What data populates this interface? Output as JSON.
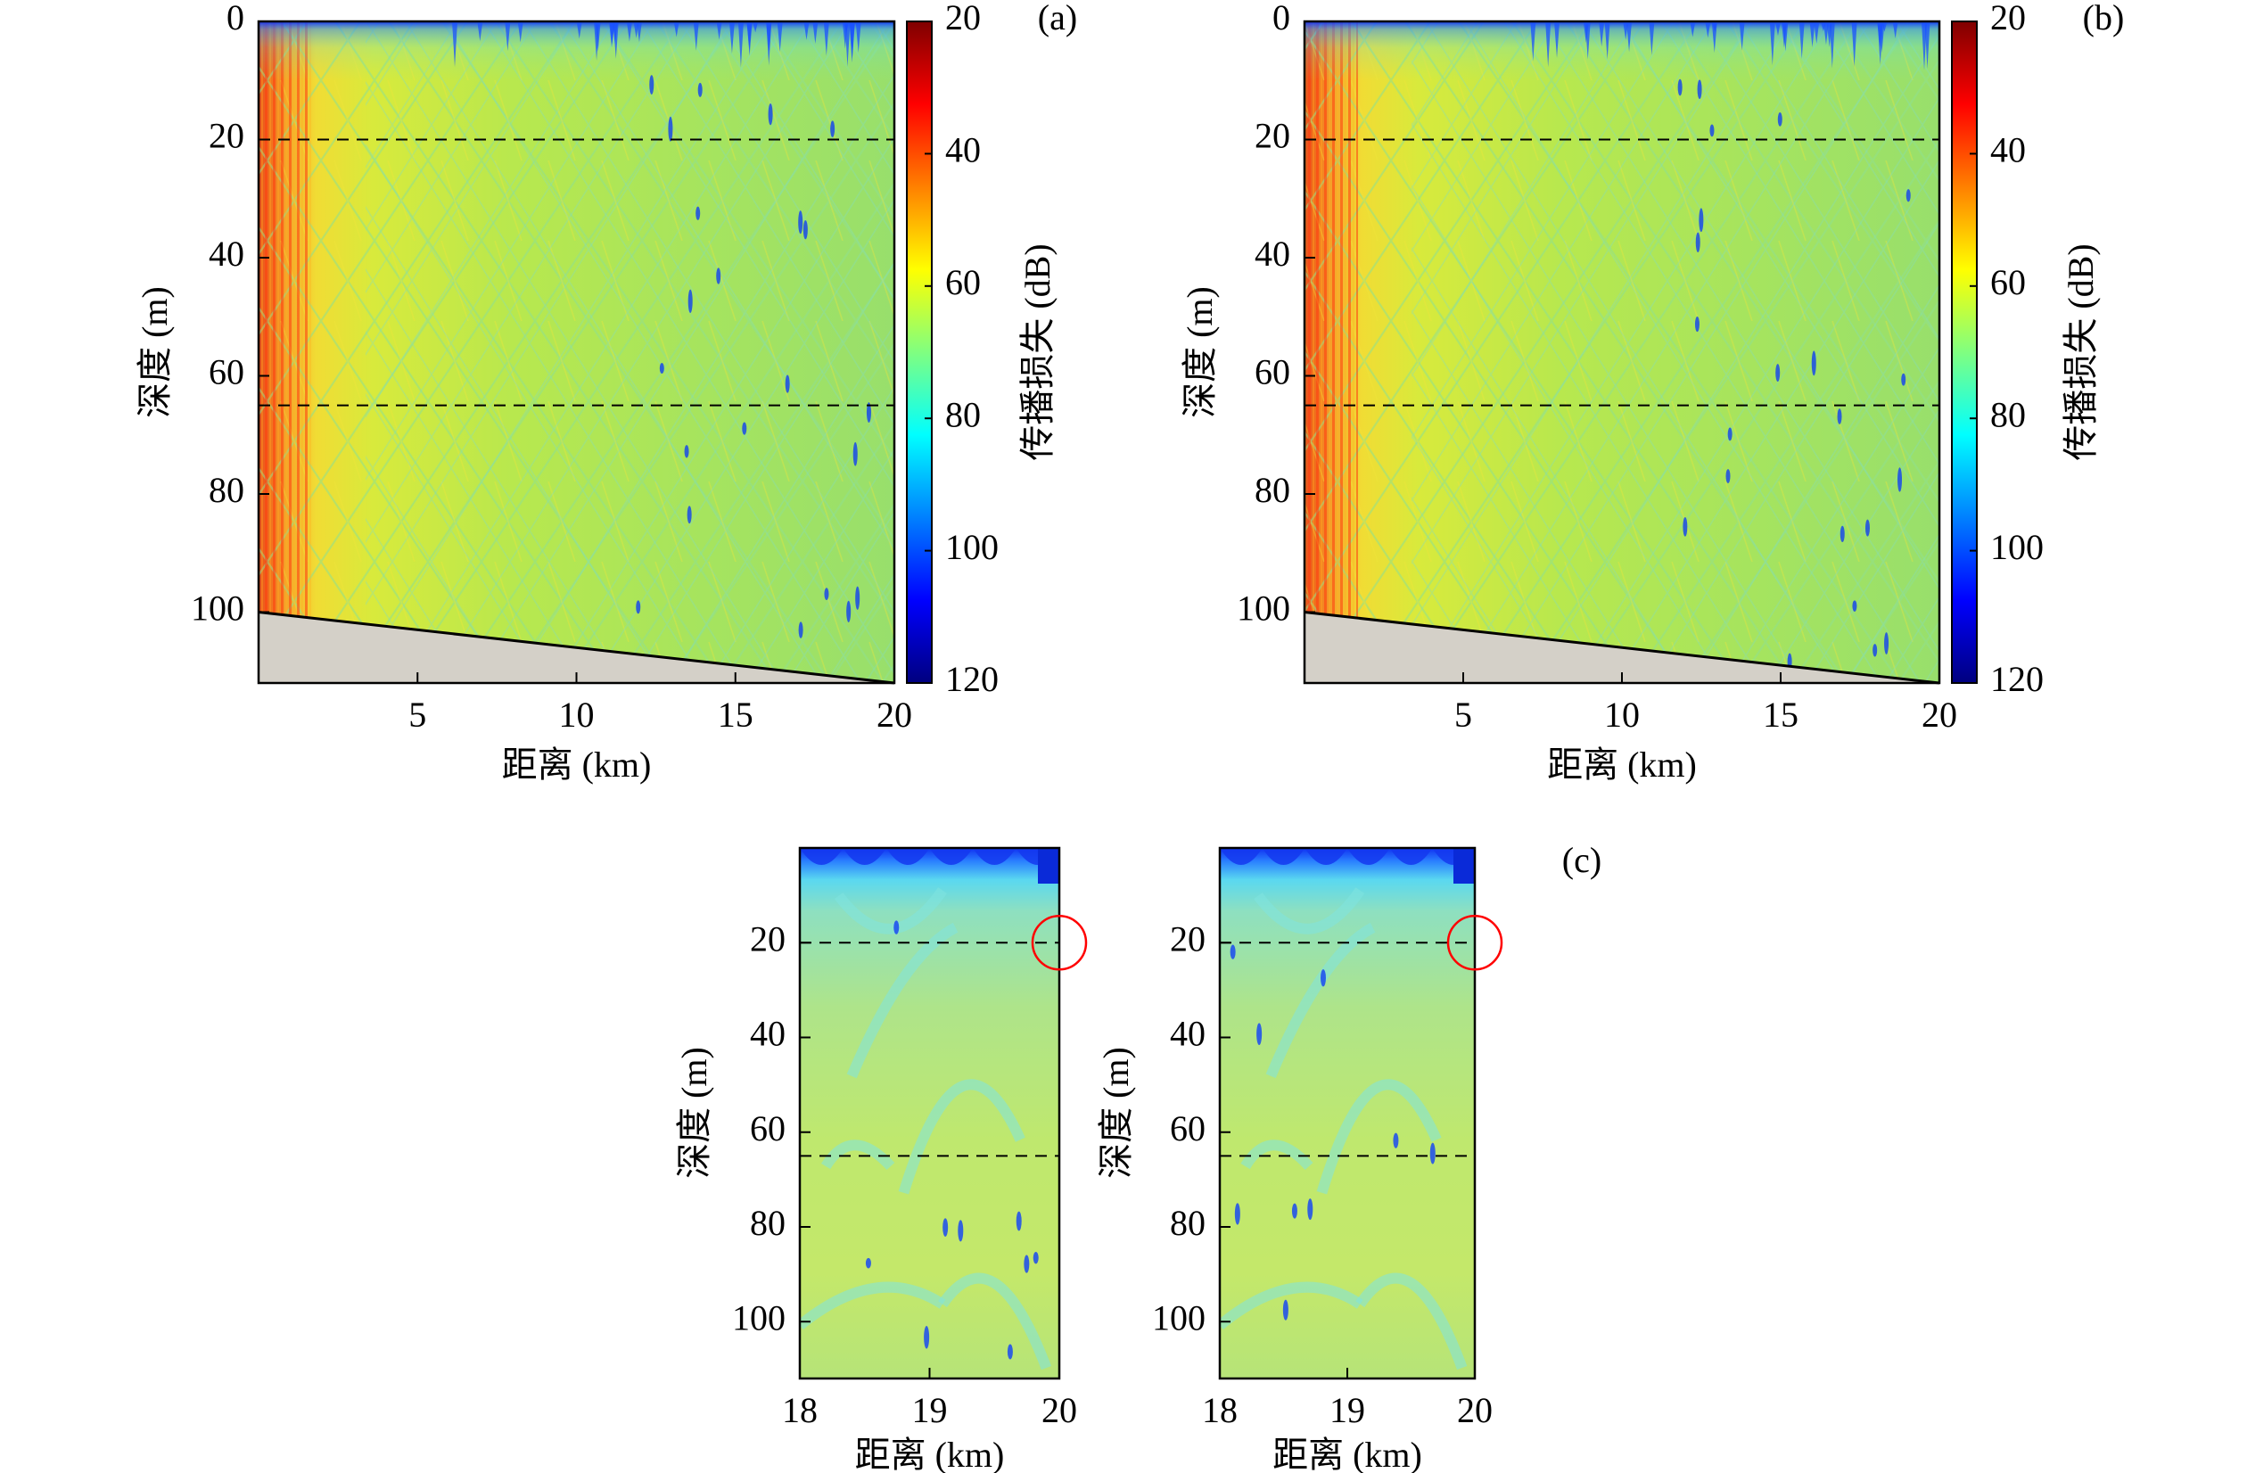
{
  "figure": {
    "colormap": [
      "#00007f",
      "#0000ff",
      "#0080ff",
      "#00ffff",
      "#80ff80",
      "#ffff00",
      "#ff8000",
      "#ff0000",
      "#7f0000"
    ],
    "bottom_fill_color": "#d4d0c8",
    "dashed_line_color": "#000000",
    "marker_color": "#ff0000"
  },
  "chart_data": [
    {
      "type": "heatmap",
      "panel_label": "(a)",
      "xlabel": "距离 (km)",
      "ylabel": "深度 (m)",
      "xlim": [
        0,
        20
      ],
      "ylim": [
        112,
        0
      ],
      "xticks": [
        5,
        10,
        15,
        20
      ],
      "yticks": [
        0,
        20,
        40,
        60,
        80,
        100
      ],
      "colorbar": {
        "label": "传播损失 (dB)",
        "range": [
          20,
          120
        ],
        "ticks": [
          20,
          40,
          60,
          80,
          100,
          120
        ]
      },
      "dashed_lines_depth": [
        20,
        65
      ],
      "seabed": {
        "x": [
          0,
          20
        ],
        "depth": [
          100,
          112
        ]
      }
    },
    {
      "type": "heatmap",
      "panel_label": "(b)",
      "xlabel": "距离 (km)",
      "ylabel": "深度 (m)",
      "xlim": [
        0,
        20
      ],
      "ylim": [
        112,
        0
      ],
      "xticks": [
        5,
        10,
        15,
        20
      ],
      "yticks": [
        0,
        20,
        40,
        60,
        80,
        100
      ],
      "colorbar": {
        "label": "传播损失 (dB)",
        "range": [
          20,
          120
        ],
        "ticks": [
          20,
          40,
          60,
          80,
          100,
          120
        ]
      },
      "dashed_lines_depth": [
        20,
        65
      ],
      "seabed": {
        "x": [
          0,
          20
        ],
        "depth": [
          100,
          112
        ]
      }
    },
    {
      "type": "heatmap",
      "panel_label": "(c)",
      "xlabel": "距离 (km)",
      "ylabel": "深度 (m)",
      "xlim": [
        18,
        20
      ],
      "ylim": [
        112,
        0
      ],
      "xticks": [
        18,
        19,
        20
      ],
      "yticks": [
        20,
        40,
        60,
        80,
        100
      ],
      "dashed_lines_depth": [
        20,
        65
      ],
      "marker": {
        "x": 20,
        "depth": 20
      }
    },
    {
      "type": "heatmap",
      "xlabel": "距离 (km)",
      "ylabel": "深度 (m)",
      "xlim": [
        18,
        20
      ],
      "ylim": [
        112,
        0
      ],
      "xticks": [
        18,
        19,
        20
      ],
      "yticks": [
        20,
        40,
        60,
        80,
        100
      ],
      "dashed_lines_depth": [
        20,
        65
      ],
      "marker": {
        "x": 20,
        "depth": 20
      }
    }
  ]
}
